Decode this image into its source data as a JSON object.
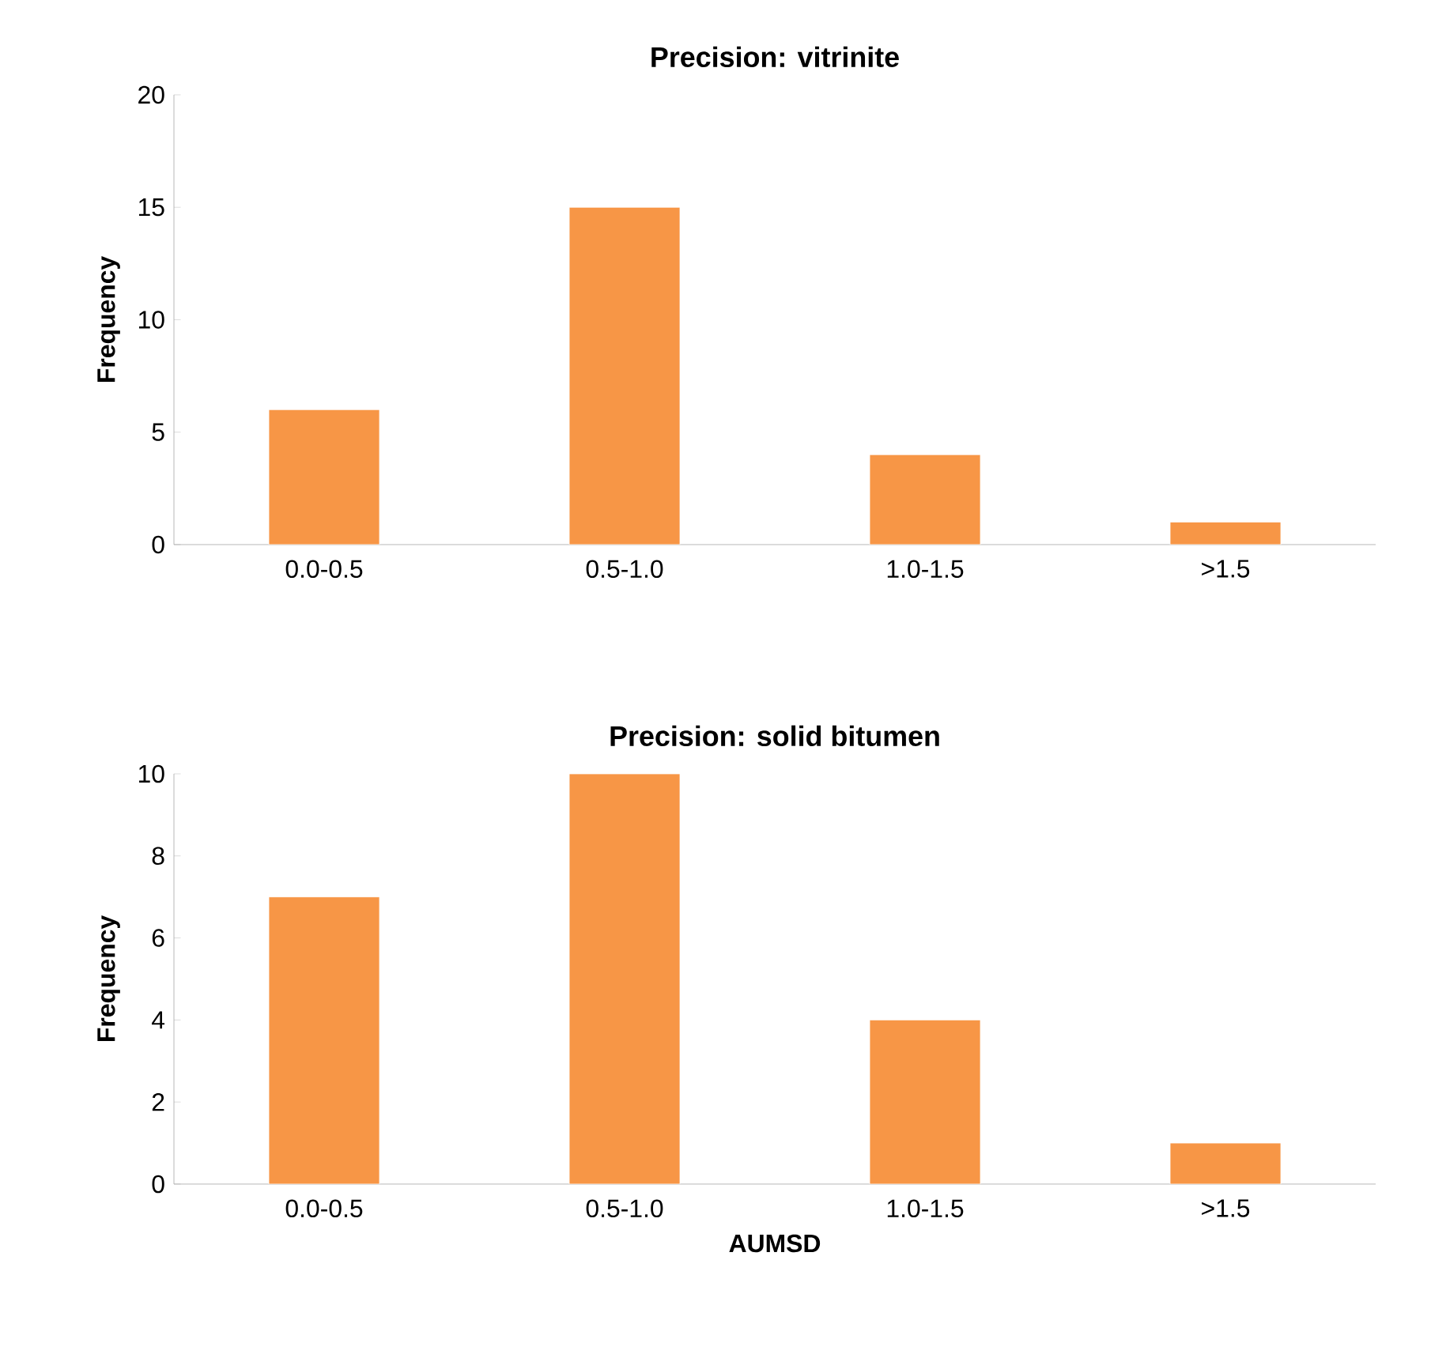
{
  "chart_data": [
    {
      "type": "bar",
      "title": "Precision: vitrinite",
      "ylabel": "Frequency",
      "categories": [
        "0.0-0.5",
        "0.5-1.0",
        "1.0-1.5",
        ">1.5"
      ],
      "values": [
        6,
        15,
        4,
        1
      ],
      "color": "#f79646",
      "ylim": [
        0,
        20
      ],
      "yticks": [
        0,
        5,
        10,
        15,
        20
      ]
    },
    {
      "type": "bar",
      "title": "Precision: solid bitumen",
      "xlabel": "AUMSD",
      "ylabel": "Frequency",
      "categories": [
        "0.0-0.5",
        "0.5-1.0",
        "1.0-1.5",
        ">1.5"
      ],
      "values": [
        7,
        10,
        4,
        1
      ],
      "color": "#f79646",
      "ylim": [
        0,
        10
      ],
      "yticks": [
        0,
        2,
        4,
        6,
        8,
        10
      ]
    }
  ]
}
